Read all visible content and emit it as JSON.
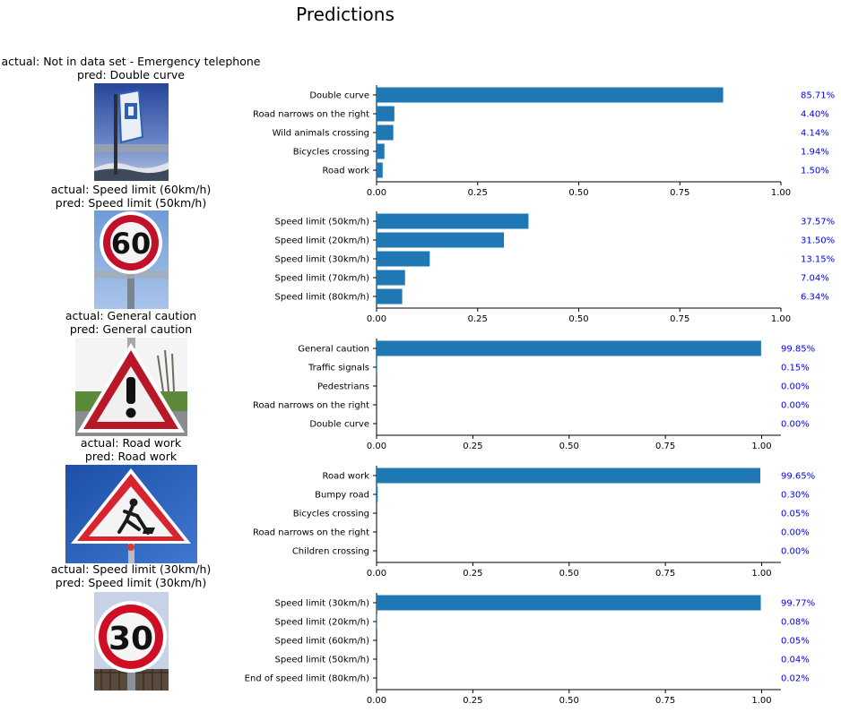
{
  "figure": {
    "title": "Predictions"
  },
  "colors": {
    "bar": "#1f77b4",
    "pct": "#0000ff",
    "axis": "#000000"
  },
  "chart_data": [
    {
      "type": "bar",
      "orientation": "horizontal",
      "image_title": [
        "actual: Not in data set - Emergency telephone",
        "pred: Double curve"
      ],
      "image_content": "emergency-telephone-sign",
      "categories": [
        "Double curve",
        "Road narrows on the right",
        "Wild animals crossing",
        "Bicycles crossing",
        "Road work"
      ],
      "values": [
        0.8571,
        0.044,
        0.0414,
        0.0194,
        0.015
      ],
      "labels": [
        "85.71%",
        "4.40%",
        "4.14%",
        "1.94%",
        "1.50%"
      ],
      "xlim": [
        0,
        1.0
      ],
      "xticks": [
        "0.00",
        "0.25",
        "0.50",
        "0.75",
        "1.00"
      ],
      "grid": false
    },
    {
      "type": "bar",
      "orientation": "horizontal",
      "image_title": [
        "actual: Speed limit (60km/h)",
        "pred: Speed limit (50km/h)"
      ],
      "image_content": "speed-limit-60-sign",
      "categories": [
        "Speed limit (50km/h)",
        "Speed limit (20km/h)",
        "Speed limit (30km/h)",
        "Speed limit (70km/h)",
        "Speed limit (80km/h)"
      ],
      "values": [
        0.3757,
        0.315,
        0.1315,
        0.0704,
        0.0634
      ],
      "labels": [
        "37.57%",
        "31.50%",
        "13.15%",
        "7.04%",
        "6.34%"
      ],
      "xlim": [
        0,
        1.0
      ],
      "xticks": [
        "0.00",
        "0.25",
        "0.50",
        "0.75",
        "1.00"
      ],
      "grid": false
    },
    {
      "type": "bar",
      "orientation": "horizontal",
      "image_title": [
        "actual: General caution",
        "pred: General caution"
      ],
      "image_content": "general-caution-sign",
      "categories": [
        "General caution",
        "Traffic signals",
        "Pedestrians",
        "Road narrows on the right",
        "Double curve"
      ],
      "values": [
        0.9985,
        0.0015,
        0.0,
        0.0,
        0.0
      ],
      "labels": [
        "99.85%",
        "0.15%",
        "0.00%",
        "0.00%",
        "0.00%"
      ],
      "xlim": [
        0,
        1.05
      ],
      "xticks": [
        "0.00",
        "0.25",
        "0.50",
        "0.75",
        "1.00"
      ],
      "grid": false
    },
    {
      "type": "bar",
      "orientation": "horizontal",
      "image_title": [
        "actual: Road work",
        "pred: Road work"
      ],
      "image_content": "road-work-sign",
      "categories": [
        "Road work",
        "Bumpy road",
        "Bicycles crossing",
        "Road narrows on the right",
        "Children crossing"
      ],
      "values": [
        0.9965,
        0.003,
        0.0005,
        0.0,
        0.0
      ],
      "labels": [
        "99.65%",
        "0.30%",
        "0.05%",
        "0.00%",
        "0.00%"
      ],
      "xlim": [
        0,
        1.05
      ],
      "xticks": [
        "0.00",
        "0.25",
        "0.50",
        "0.75",
        "1.00"
      ],
      "grid": false
    },
    {
      "type": "bar",
      "orientation": "horizontal",
      "image_title": [
        "actual: Speed limit (30km/h)",
        "pred: Speed limit (30km/h)"
      ],
      "image_content": "speed-limit-30-sign",
      "categories": [
        "Speed limit (30km/h)",
        "Speed limit (20km/h)",
        "Speed limit (60km/h)",
        "Speed limit (50km/h)",
        "End of speed limit (80km/h)"
      ],
      "values": [
        0.9977,
        0.0008,
        0.0005,
        0.0004,
        0.0002
      ],
      "labels": [
        "99.77%",
        "0.08%",
        "0.05%",
        "0.04%",
        "0.02%"
      ],
      "xlim": [
        0,
        1.05
      ],
      "xticks": [
        "0.00",
        "0.25",
        "0.50",
        "0.75",
        "1.00"
      ],
      "grid": false
    }
  ]
}
